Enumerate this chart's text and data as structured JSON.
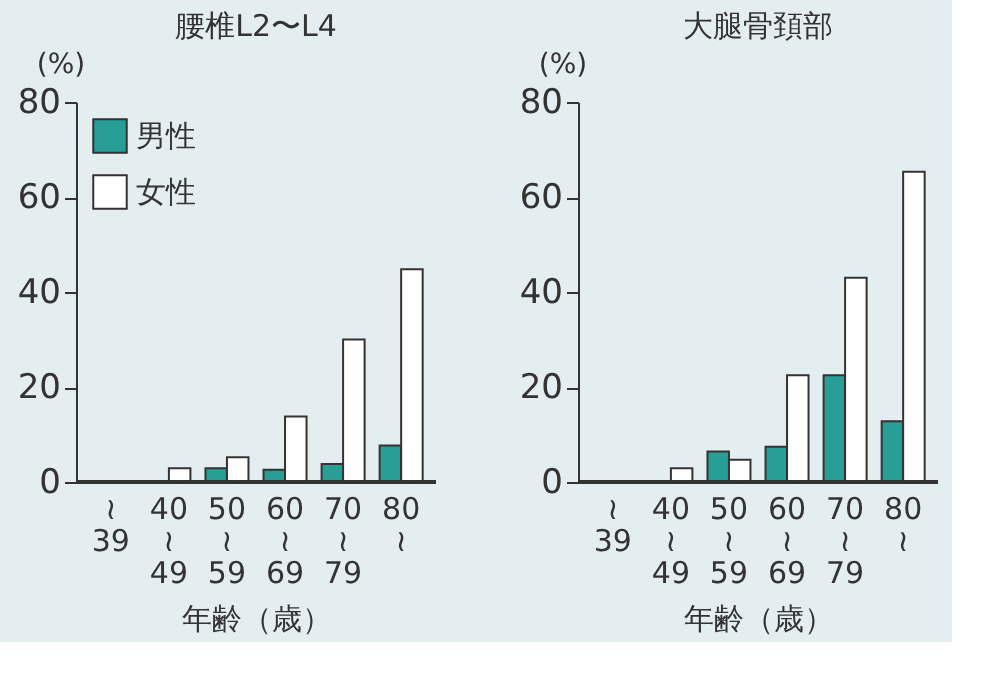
{
  "chart_data": [
    {
      "type": "bar",
      "title": "腰椎L2〜L4",
      "ylabel": "(%)",
      "xlabel": "年齢（歳）",
      "categories": [
        "≀\n39",
        "40\n≀\n49",
        "50\n≀\n59",
        "60\n≀\n69",
        "70\n≀\n79",
        "80\n≀"
      ],
      "series": [
        {
          "name": "男性",
          "color": "#279e96",
          "values": [
            0,
            0,
            2.9,
            2.6,
            3.8,
            7.7
          ]
        },
        {
          "name": "女性",
          "color": "#ffffff",
          "values": [
            0,
            2.9,
            5.2,
            13.8,
            30,
            44.8
          ]
        }
      ],
      "ylim": [
        0,
        80
      ],
      "yticks": [
        0,
        20,
        40,
        60,
        80
      ],
      "grid": false,
      "legend": "top left"
    },
    {
      "type": "bar",
      "title": "大腿骨頚部",
      "ylabel": "(%)",
      "xlabel": "年齢（歳）",
      "categories": [
        "≀\n39",
        "40\n≀\n49",
        "50\n≀\n59",
        "60\n≀\n69",
        "70\n≀\n79",
        "80\n≀"
      ],
      "series": [
        {
          "color": "#279e96",
          "values": [
            0,
            0,
            6.4,
            7.4,
            22.5,
            12.8
          ]
        },
        {
          "color": "#ffffff",
          "values": [
            0,
            2.9,
            4.7,
            22.5,
            43,
            65.3
          ]
        }
      ],
      "ylim": [
        0,
        80
      ],
      "yticks": [
        0,
        20,
        40,
        60,
        80
      ],
      "grid": false,
      "legend": false
    }
  ]
}
